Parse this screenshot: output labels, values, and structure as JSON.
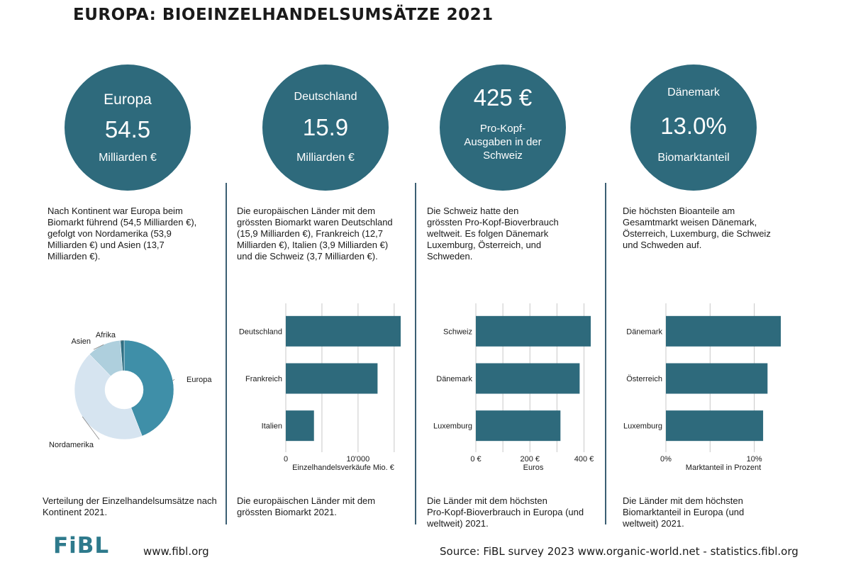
{
  "title": "EUROPA: BIOEINZELHANDELSUMSÄTZE 2021",
  "circles": [
    {
      "top": "Europa",
      "value": "54.5",
      "bottom": "Milliarden €"
    },
    {
      "top": "Deutschland",
      "value": "15.9",
      "bottom": "Milliarden €"
    },
    {
      "value": "425 €",
      "bottom_lines": [
        "Pro-Kopf-",
        "Ausgaben in der",
        "Schweiz"
      ]
    },
    {
      "top": "Dänemark",
      "value": "13.0%",
      "bottom": "Biomarktanteil"
    }
  ],
  "paragraphs": [
    [
      "Nach Kontinent war Europa beim",
      "Biomarkt führend (54,5 Milliarden €),",
      "gefolgt von Nordamerika (53,9",
      "Milliarden €) und Asien (13,7",
      "Milliarden €)."
    ],
    [
      "Die europäischen Länder mit dem",
      "grössten Biomarkt waren Deutschland",
      "(15,9 Milliarden €), Frankreich (12,7",
      "Milliarden €), Italien (3,9 Milliarden €)",
      "und die Schweiz (3,7 Milliarden €)."
    ],
    [
      "Die Schweiz hatte den",
      "grössten Pro-Kopf-Bioverbrauch",
      "weltweit. Es folgen Dänemark",
      "Luxemburg, Österreich, und",
      "Schweden."
    ],
    [
      "Die höchsten Bioanteile am",
      "Gesamtmarkt weisen Dänemark,",
      "Österreich, Luxemburg, die Schweiz",
      "und Schweden auf."
    ]
  ],
  "captions": [
    [
      "Verteilung der Einzelhandelsumsätze nach",
      "Kontinent 2021."
    ],
    [
      "Die europäischen  Länder mit dem",
      "grössten Biomarkt 2021."
    ],
    [
      "Die Länder mit dem höchsten",
      "Pro-Kopf-Bioverbrauch in Europa (und",
      "weltweit) 2021."
    ],
    [
      "Die Länder mit dem höchsten",
      "Biomarktanteil in Europa (und",
      "weltweit) 2021."
    ]
  ],
  "chart_data": [
    {
      "type": "pie",
      "categories": [
        "Europa",
        "Nordamerika",
        "Asien",
        "Afrika"
      ],
      "values": [
        54.5,
        53.9,
        13.7,
        1.5
      ],
      "colors": [
        "#3f8fa8",
        "#d6e4f0",
        "#aecfdd",
        "#2f6e82"
      ],
      "donut": true
    },
    {
      "type": "bar",
      "orientation": "horizontal",
      "categories": [
        "Deutschland",
        "Frankreich",
        "Italien"
      ],
      "values": [
        15900,
        12700,
        3900
      ],
      "xlim": [
        0,
        15900
      ],
      "xticks": [
        {
          "v": 0,
          "label": "0"
        },
        {
          "v": 10000,
          "label": "10'000"
        }
      ],
      "gridlines": [
        5000,
        10000,
        15000
      ],
      "xlabel": "Einzelhandelsverkäufe Mio. €",
      "color": "#2e6a7c"
    },
    {
      "type": "bar",
      "orientation": "horizontal",
      "categories": [
        "Schweiz",
        "Dänemark",
        "Luxemburg"
      ],
      "values": [
        425,
        384,
        313
      ],
      "xlim": [
        0,
        425
      ],
      "xticks": [
        {
          "v": 0,
          "label": "0 €"
        },
        {
          "v": 200,
          "label": "200 €"
        },
        {
          "v": 400,
          "label": "400 €"
        }
      ],
      "gridlines": [
        100,
        200,
        300,
        400
      ],
      "xlabel": "Euros",
      "color": "#2e6a7c"
    },
    {
      "type": "bar",
      "orientation": "horizontal",
      "categories": [
        "Dänemark",
        "Österreich",
        "Luxemburg"
      ],
      "values": [
        13.0,
        11.5,
        11.0
      ],
      "xlim": [
        0,
        13.0
      ],
      "xticks": [
        {
          "v": 0,
          "label": "0%"
        },
        {
          "v": 10,
          "label": "10%"
        }
      ],
      "gridlines": [
        5,
        10
      ],
      "xlabel": "Marktanteil in Prozent",
      "color": "#2e6a7c"
    }
  ],
  "footer": {
    "logo": "FiBL",
    "website": "www.fibl.org",
    "source": "Source: FiBL survey 2023 www.organic-world.net - statistics.fibl.org"
  }
}
